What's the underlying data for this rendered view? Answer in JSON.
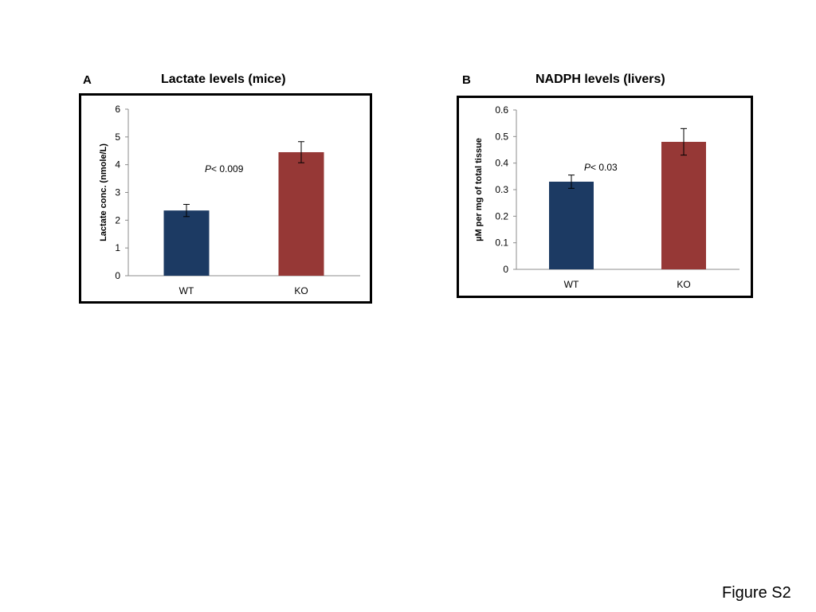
{
  "figure_label": "Figure S2",
  "panels": [
    {
      "letter": "A",
      "title": "Lactate levels (mice)"
    },
    {
      "letter": "B",
      "title": "NADPH levels (livers)"
    }
  ],
  "colors": {
    "wt": "#1c3a63",
    "ko": "#963836",
    "axis": "#8c8c8c"
  },
  "chart_data": [
    {
      "type": "bar",
      "title": "Lactate levels (mice)",
      "categories": [
        "WT",
        "KO"
      ],
      "values": [
        2.35,
        4.45
      ],
      "errors": [
        0.22,
        0.38
      ],
      "ylim": [
        0,
        6
      ],
      "yticks": [
        "0",
        "1",
        "2",
        "3",
        "4",
        "5",
        "6"
      ],
      "ylabel": "Lactate conc. (nmole/L)",
      "xlabel": "",
      "grid": false,
      "annotation": {
        "p_label": "P",
        "p_text": "<  0.009"
      }
    },
    {
      "type": "bar",
      "title": "NADPH levels (livers)",
      "categories": [
        "WT",
        "KO"
      ],
      "values": [
        0.33,
        0.48
      ],
      "errors": [
        0.025,
        0.05
      ],
      "ylim": [
        0,
        0.6
      ],
      "yticks": [
        "0",
        "0.1",
        "0.2",
        "0.3",
        "0.4",
        "0.5",
        "0.6"
      ],
      "ylabel": "µM per mg of total tissue",
      "xlabel": "",
      "grid": false,
      "annotation": {
        "p_label": "P",
        "p_text": "< 0.03"
      }
    }
  ]
}
